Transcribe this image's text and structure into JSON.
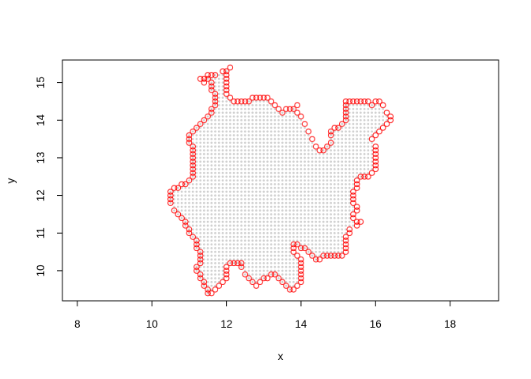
{
  "chart_data": {
    "type": "scatter",
    "title": "",
    "xlabel": "x",
    "ylabel": "y",
    "xlim": [
      7.6,
      19.3
    ],
    "ylim": [
      9.2,
      15.6
    ],
    "x_ticks": [
      "8",
      "10",
      "12",
      "14",
      "16",
      "18"
    ],
    "y_ticks": [
      "10",
      "11",
      "12",
      "13",
      "14",
      "15"
    ],
    "grid": false,
    "legend": "none",
    "grid_step": 0.1,
    "colors": {
      "fill_points": "#d0d0d0",
      "boundary_points": "#ff0000",
      "axes": "#000000"
    },
    "series": [
      {
        "marker": "filled-dot",
        "color": "#d0d0d0",
        "note_fill": "dense grid of points filling the region enclosed by the boundary"
      },
      {
        "marker": "open-circle",
        "color": "#ff0000",
        "points": [
          [
            10.6,
            11.6
          ],
          [
            10.5,
            11.8
          ],
          [
            10.5,
            11.9
          ],
          [
            10.5,
            12.0
          ],
          [
            10.5,
            12.1
          ],
          [
            10.6,
            12.2
          ],
          [
            10.7,
            12.2
          ],
          [
            10.8,
            12.3
          ],
          [
            10.9,
            12.3
          ],
          [
            11.0,
            12.4
          ],
          [
            11.1,
            12.5
          ],
          [
            11.1,
            12.6
          ],
          [
            11.1,
            12.7
          ],
          [
            11.1,
            12.8
          ],
          [
            11.1,
            12.9
          ],
          [
            11.1,
            13.0
          ],
          [
            11.1,
            13.1
          ],
          [
            11.1,
            13.2
          ],
          [
            11.1,
            13.3
          ],
          [
            11.0,
            13.4
          ],
          [
            11.0,
            13.5
          ],
          [
            11.0,
            13.6
          ],
          [
            11.1,
            13.7
          ],
          [
            11.2,
            13.8
          ],
          [
            11.3,
            13.9
          ],
          [
            11.4,
            14.0
          ],
          [
            11.5,
            14.1
          ],
          [
            11.6,
            14.2
          ],
          [
            11.6,
            14.3
          ],
          [
            11.7,
            14.4
          ],
          [
            11.7,
            14.5
          ],
          [
            11.7,
            14.6
          ],
          [
            11.7,
            14.7
          ],
          [
            11.6,
            14.8
          ],
          [
            11.6,
            14.9
          ],
          [
            11.6,
            15.0
          ],
          [
            11.5,
            15.1
          ],
          [
            11.4,
            15.1
          ],
          [
            11.3,
            15.1
          ],
          [
            11.4,
            15.0
          ],
          [
            11.5,
            15.2
          ],
          [
            11.6,
            15.2
          ],
          [
            11.7,
            15.2
          ],
          [
            11.9,
            15.3
          ],
          [
            12.0,
            15.3
          ],
          [
            12.1,
            15.4
          ],
          [
            12.0,
            15.2
          ],
          [
            12.0,
            15.1
          ],
          [
            12.0,
            15.0
          ],
          [
            12.0,
            14.9
          ],
          [
            12.0,
            14.8
          ],
          [
            12.0,
            14.7
          ],
          [
            12.1,
            14.6
          ],
          [
            12.2,
            14.5
          ],
          [
            12.3,
            14.5
          ],
          [
            12.4,
            14.5
          ],
          [
            12.5,
            14.5
          ],
          [
            12.6,
            14.5
          ],
          [
            12.7,
            14.6
          ],
          [
            12.8,
            14.6
          ],
          [
            12.9,
            14.6
          ],
          [
            13.0,
            14.6
          ],
          [
            13.1,
            14.6
          ],
          [
            13.2,
            14.5
          ],
          [
            13.3,
            14.4
          ],
          [
            13.4,
            14.3
          ],
          [
            13.5,
            14.2
          ],
          [
            13.6,
            14.3
          ],
          [
            13.7,
            14.3
          ],
          [
            13.8,
            14.3
          ],
          [
            13.9,
            14.4
          ],
          [
            13.9,
            14.2
          ],
          [
            14.0,
            14.1
          ],
          [
            14.1,
            13.9
          ],
          [
            14.2,
            13.7
          ],
          [
            14.3,
            13.5
          ],
          [
            14.4,
            13.3
          ],
          [
            14.5,
            13.2
          ],
          [
            14.6,
            13.2
          ],
          [
            14.7,
            13.3
          ],
          [
            14.8,
            13.4
          ],
          [
            14.8,
            13.6
          ],
          [
            14.8,
            13.7
          ],
          [
            14.9,
            13.8
          ],
          [
            15.0,
            13.8
          ],
          [
            15.1,
            13.9
          ],
          [
            15.2,
            14.0
          ],
          [
            15.2,
            14.1
          ],
          [
            15.2,
            14.2
          ],
          [
            15.2,
            14.3
          ],
          [
            15.2,
            14.4
          ],
          [
            15.2,
            14.5
          ],
          [
            15.3,
            14.5
          ],
          [
            15.4,
            14.5
          ],
          [
            15.5,
            14.5
          ],
          [
            15.6,
            14.5
          ],
          [
            15.7,
            14.5
          ],
          [
            15.8,
            14.5
          ],
          [
            15.9,
            14.4
          ],
          [
            16.0,
            14.5
          ],
          [
            16.1,
            14.5
          ],
          [
            16.2,
            14.4
          ],
          [
            16.3,
            14.2
          ],
          [
            16.4,
            14.1
          ],
          [
            16.4,
            14.0
          ],
          [
            16.3,
            13.9
          ],
          [
            16.2,
            13.8
          ],
          [
            16.1,
            13.7
          ],
          [
            16.0,
            13.6
          ],
          [
            15.9,
            13.5
          ],
          [
            16.0,
            13.3
          ],
          [
            16.0,
            13.2
          ],
          [
            16.0,
            13.1
          ],
          [
            16.0,
            13.0
          ],
          [
            16.0,
            12.9
          ],
          [
            16.0,
            12.8
          ],
          [
            16.0,
            12.7
          ],
          [
            15.9,
            12.6
          ],
          [
            15.8,
            12.5
          ],
          [
            15.7,
            12.5
          ],
          [
            15.6,
            12.5
          ],
          [
            15.5,
            12.4
          ],
          [
            15.5,
            12.3
          ],
          [
            15.5,
            12.2
          ],
          [
            15.4,
            12.1
          ],
          [
            15.4,
            12.0
          ],
          [
            15.4,
            11.9
          ],
          [
            15.4,
            11.8
          ],
          [
            15.5,
            11.7
          ],
          [
            15.5,
            11.6
          ],
          [
            15.4,
            11.5
          ],
          [
            15.4,
            11.4
          ],
          [
            15.5,
            11.3
          ],
          [
            15.6,
            11.3
          ],
          [
            15.5,
            11.2
          ],
          [
            15.3,
            11.1
          ],
          [
            15.3,
            11.0
          ],
          [
            15.2,
            10.9
          ],
          [
            15.2,
            10.8
          ],
          [
            15.2,
            10.7
          ],
          [
            15.2,
            10.6
          ],
          [
            15.2,
            10.5
          ],
          [
            15.1,
            10.4
          ],
          [
            15.0,
            10.4
          ],
          [
            14.9,
            10.4
          ],
          [
            14.8,
            10.4
          ],
          [
            14.7,
            10.4
          ],
          [
            14.6,
            10.4
          ],
          [
            14.5,
            10.3
          ],
          [
            14.4,
            10.3
          ],
          [
            14.3,
            10.4
          ],
          [
            14.2,
            10.5
          ],
          [
            14.1,
            10.6
          ],
          [
            14.0,
            10.6
          ],
          [
            13.9,
            10.7
          ],
          [
            13.8,
            10.7
          ],
          [
            13.8,
            10.6
          ],
          [
            13.8,
            10.5
          ],
          [
            13.9,
            10.4
          ],
          [
            14.0,
            10.3
          ],
          [
            14.0,
            10.2
          ],
          [
            14.0,
            10.1
          ],
          [
            14.0,
            10.0
          ],
          [
            14.0,
            9.9
          ],
          [
            14.0,
            9.8
          ],
          [
            14.0,
            9.7
          ],
          [
            13.9,
            9.6
          ],
          [
            13.8,
            9.5
          ],
          [
            13.7,
            9.5
          ],
          [
            13.6,
            9.6
          ],
          [
            13.5,
            9.7
          ],
          [
            13.4,
            9.8
          ],
          [
            13.3,
            9.9
          ],
          [
            13.2,
            9.9
          ],
          [
            13.1,
            9.8
          ],
          [
            13.0,
            9.8
          ],
          [
            12.9,
            9.7
          ],
          [
            12.8,
            9.6
          ],
          [
            12.7,
            9.7
          ],
          [
            12.6,
            9.8
          ],
          [
            12.5,
            9.9
          ],
          [
            12.4,
            10.1
          ],
          [
            12.4,
            10.2
          ],
          [
            12.3,
            10.2
          ],
          [
            12.2,
            10.2
          ],
          [
            12.1,
            10.2
          ],
          [
            12.0,
            10.1
          ],
          [
            12.0,
            10.0
          ],
          [
            12.0,
            9.9
          ],
          [
            12.0,
            9.8
          ],
          [
            11.9,
            9.7
          ],
          [
            11.8,
            9.6
          ],
          [
            11.7,
            9.5
          ],
          [
            11.6,
            9.4
          ],
          [
            11.5,
            9.4
          ],
          [
            11.5,
            9.5
          ],
          [
            11.4,
            9.6
          ],
          [
            11.4,
            9.7
          ],
          [
            11.3,
            9.8
          ],
          [
            11.3,
            9.9
          ],
          [
            11.2,
            10.0
          ],
          [
            11.2,
            10.1
          ],
          [
            11.3,
            10.2
          ],
          [
            11.3,
            10.3
          ],
          [
            11.3,
            10.4
          ],
          [
            11.3,
            10.5
          ],
          [
            11.2,
            10.6
          ],
          [
            11.2,
            10.7
          ],
          [
            11.2,
            10.8
          ],
          [
            11.1,
            10.9
          ],
          [
            11.0,
            11.0
          ],
          [
            11.0,
            11.1
          ],
          [
            10.9,
            11.2
          ],
          [
            10.9,
            11.3
          ],
          [
            10.8,
            11.4
          ],
          [
            10.7,
            11.5
          ]
        ]
      }
    ]
  }
}
